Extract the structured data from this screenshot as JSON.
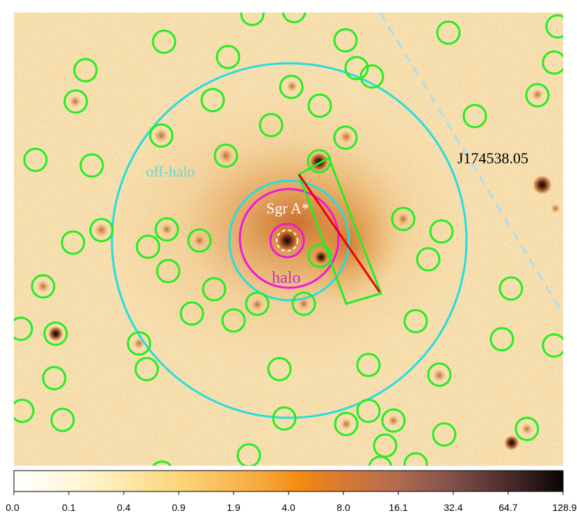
{
  "image": {
    "description_colors": {
      "background": "#f7e2b4",
      "noise_dark": "#d2761e",
      "noise_light": "#fbeed0",
      "source_region": "#c8621c"
    }
  },
  "labels": {
    "off_halo": "off-halo",
    "sgr_a": "Sgr A*",
    "halo": "halo",
    "source_name": "J174538.05"
  },
  "colors": {
    "cyan": "#22dede",
    "magenta": "#ee18d8",
    "green": "#22ee22",
    "red": "#ee0000",
    "white_dashed": "#ffffff",
    "light_blue_dashed": "#a9dff0",
    "off_halo_text": "#68d8d0",
    "sgr_text": "#ffffff",
    "halo_text": "#c030c0",
    "source_text": "#000000"
  },
  "colorbar": {
    "scale": "log",
    "colormap": "heat (white → yellow → orange → brown → black)",
    "ticks": [
      "0.0",
      "0.1",
      "0.4",
      "0.9",
      "1.9",
      "4.0",
      "8.0",
      "16.1",
      "32.4",
      "64.7",
      "128.9"
    ]
  }
}
